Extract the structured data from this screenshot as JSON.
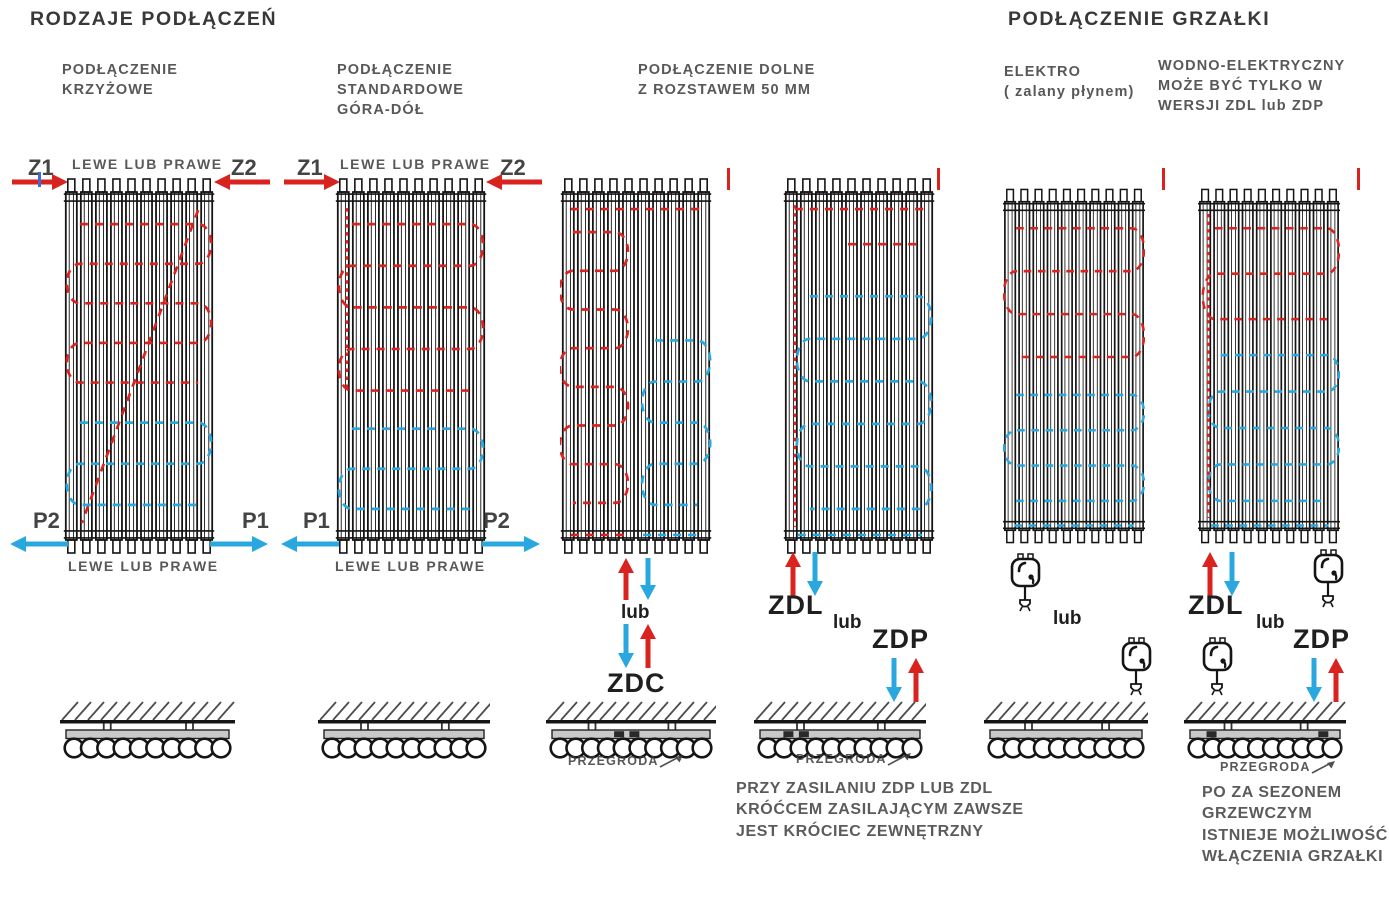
{
  "colors": {
    "red": "#d9231f",
    "blue": "#29a8e0",
    "ink": "#151515",
    "gray_bar": "#c9c9c9",
    "hatch": "#4d4d4d"
  },
  "titles": {
    "connection_types": "RODZAJE PODŁĄCZEŃ",
    "heater_connection": "PODŁĄCZENIE GRZAŁKI"
  },
  "headings": {
    "krzyzowe": "PODŁĄCZENIE\nKRZYŻOWE",
    "standardowe": "PODŁĄCZENIE\nSTANDARDOWE\nGÓRA-DÓŁ",
    "dolne": "PODŁĄCZENIE DOLNE\nZ ROZSTAWEM 50 MM",
    "elektro": "ELEKTRO\n( zalany płynem)",
    "wodno": "WODNO-ELEKTRYCZNY\nMOŻE BYĆ TYLKO W\nWERSJI ZDL lub ZDP"
  },
  "labels": {
    "lewe_lub_prawe": "LEWE LUB PRAWE",
    "z1": "Z1",
    "z2": "Z2",
    "p1": "P1",
    "p2": "P2",
    "lub": "lub",
    "zdc": "ZDC",
    "zdl": "ZDL",
    "zdp": "ZDP",
    "przegroda": "PRZEGRODA"
  },
  "notes": {
    "zasilanie": "PRZY ZASILANIU ZDP LUB ZDL\nKRÓĆCEM ZASILAJĄCYM ZAWSZE\nJEST KRÓCIEC ZEWNĘTRZNY",
    "sezon": "PO ZA SEZONEM\nGRZEWCZYM\nISTNIEJE MOŻLIWOŚĆ\nWŁĄCZENIA GRZAŁKI"
  }
}
